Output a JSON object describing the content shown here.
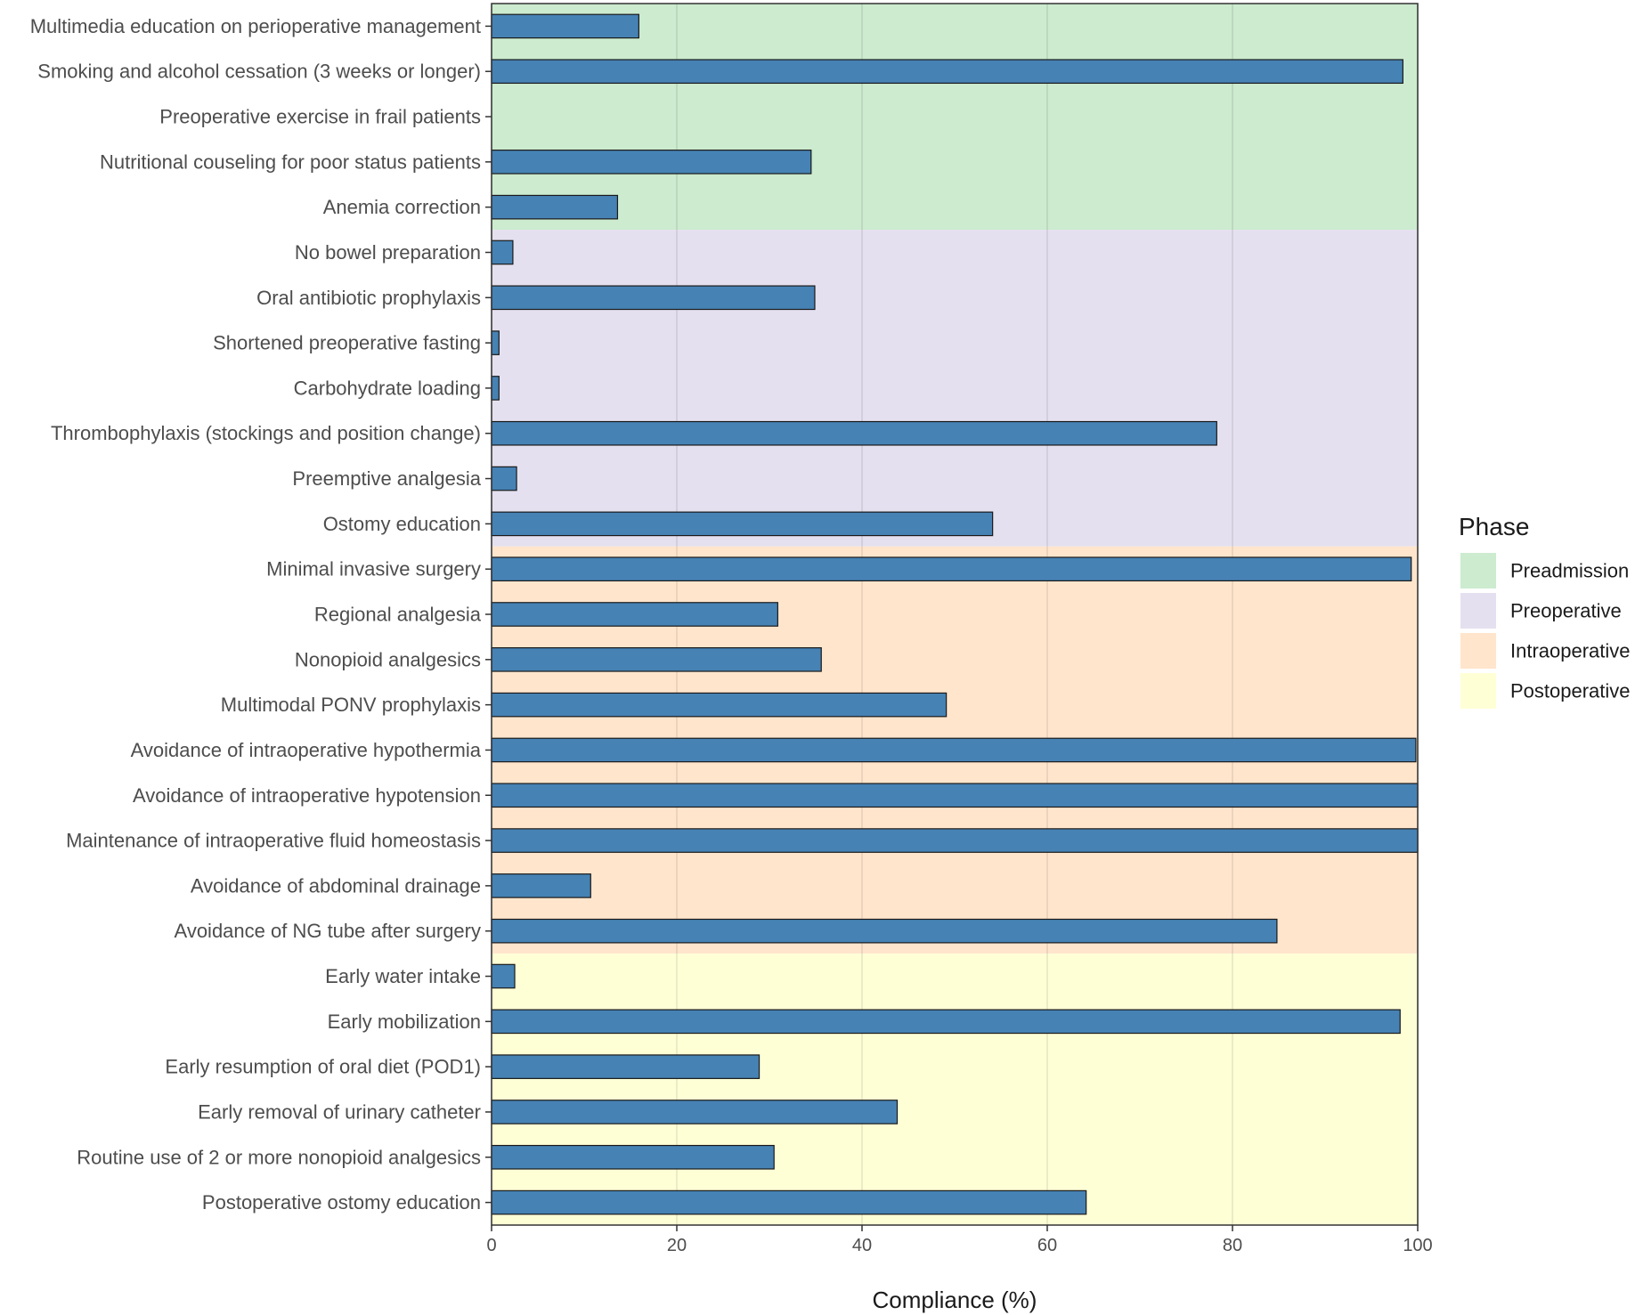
{
  "chart_data": {
    "type": "bar",
    "orientation": "horizontal",
    "title": "",
    "xlabel": "Compliance (%)",
    "ylabel": "",
    "xlim": [
      0,
      100
    ],
    "xticks": [
      0,
      20,
      40,
      60,
      80,
      100
    ],
    "grid": true,
    "bar_color": "#4682B4",
    "legend": {
      "title": "Phase",
      "position": "right",
      "entries": [
        {
          "name": "Preadmission",
          "color": "#CCEBCF"
        },
        {
          "name": "Preoperative",
          "color": "#E5E0EF"
        },
        {
          "name": "Intraoperative",
          "color": "#FFE5CC"
        },
        {
          "name": "Postoperative",
          "color": "#FFFFD6"
        }
      ]
    },
    "categories": [
      "Multimedia education on perioperative management",
      "Smoking and alcohol cessation (3 weeks or longer)",
      "Preoperative exercise in frail patients",
      "Nutritional couseling for poor status patients",
      "Anemia correction",
      "No bowel preparation",
      "Oral antibiotic prophylaxis",
      "Shortened preoperative fasting",
      "Carbohydrate loading",
      "Thrombophylaxis (stockings and position change)",
      "Preemptive analgesia",
      "Ostomy education",
      "Minimal invasive surgery",
      "Regional analgesia",
      "Nonopioid analgesics",
      "Multimodal PONV prophylaxis",
      "Avoidance of intraoperative hypothermia",
      "Avoidance of intraoperative hypotension",
      "Maintenance of intraoperative fluid homeostasis",
      "Avoidance of abdominal drainage",
      "Avoidance of NG tube after surgery",
      "Early water intake",
      "Early mobilization",
      "Early resumption of oral diet (POD1)",
      "Early removal of urinary catheter",
      "Routine use of 2 or more nonopioid analgesics",
      "Postoperative ostomy education"
    ],
    "values": [
      15.9,
      98.4,
      0,
      34.5,
      13.6,
      2.3,
      34.9,
      0.8,
      0.8,
      78.3,
      2.7,
      54.1,
      99.3,
      30.9,
      35.6,
      49.1,
      99.8,
      100,
      100,
      10.7,
      84.8,
      2.5,
      98.1,
      28.9,
      43.8,
      30.5,
      64.2
    ],
    "phases": [
      "Preadmission",
      "Preadmission",
      "Preadmission",
      "Preadmission",
      "Preadmission",
      "Preoperative",
      "Preoperative",
      "Preoperative",
      "Preoperative",
      "Preoperative",
      "Preoperative",
      "Preoperative",
      "Intraoperative",
      "Intraoperative",
      "Intraoperative",
      "Intraoperative",
      "Intraoperative",
      "Intraoperative",
      "Intraoperative",
      "Intraoperative",
      "Intraoperative",
      "Postoperative",
      "Postoperative",
      "Postoperative",
      "Postoperative",
      "Postoperative",
      "Postoperative"
    ]
  }
}
